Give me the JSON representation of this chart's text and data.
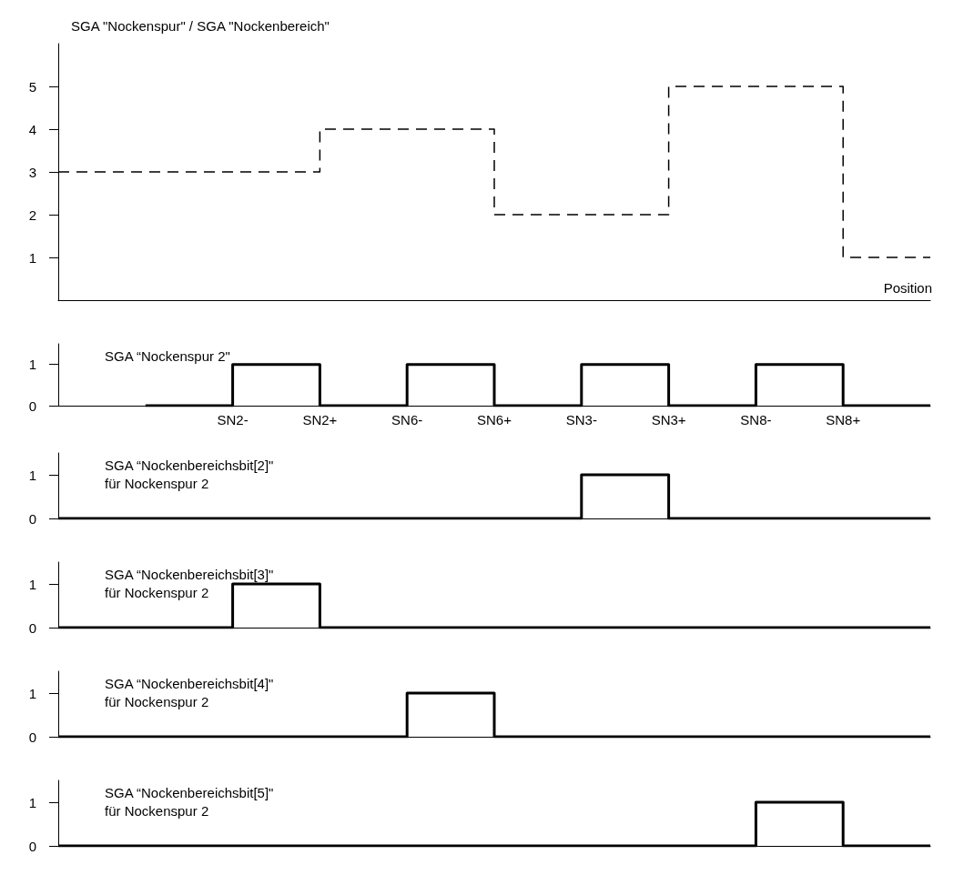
{
  "chart_data": [
    {
      "type": "step",
      "ylabel": "SGA \"Nockenspur\" / SGA \"Nockenbereich\"",
      "xlabel": "Position",
      "categories": [
        null,
        null,
        null,
        null,
        null,
        null,
        null,
        null,
        null,
        null,
        null
      ],
      "values": [
        3,
        3,
        3,
        4,
        4,
        2,
        2,
        5,
        5,
        1,
        1
      ],
      "color": "#000000",
      "ylim": [
        0,
        6
      ],
      "yticks": [
        1,
        2,
        3,
        4,
        5
      ],
      "tick_labels": "y",
      "grid": false,
      "marker": "none",
      "line_style": "dashed"
    },
    {
      "type": "step",
      "title": "SGA “Nockenspur 2\"",
      "categories": [
        null,
        null,
        "SN2-",
        "SN2+",
        "SN6-",
        "SN6+",
        "SN3-",
        "SN3+",
        "SN8-",
        "SN8+",
        null
      ],
      "values": [
        null,
        0,
        1,
        0,
        1,
        0,
        1,
        0,
        1,
        0,
        0
      ],
      "color": "#000000",
      "ylim": [
        0,
        1.5
      ],
      "yticks": [
        0,
        1
      ],
      "grid": false,
      "marker": "none",
      "line_style": "solid"
    },
    {
      "type": "step",
      "title": "SGA “Nockenbereichsbit[2]\"\nfür Nockenspur 2",
      "categories": [
        null,
        null,
        null,
        null,
        null,
        null,
        null,
        null,
        null,
        null,
        null
      ],
      "values": [
        0,
        0,
        0,
        0,
        0,
        0,
        1,
        0,
        0,
        0,
        0
      ],
      "color": "#000000",
      "ylim": [
        0,
        1.5
      ],
      "yticks": [
        0,
        1
      ],
      "tick_labels": "y",
      "grid": false,
      "marker": "none",
      "line_style": "solid"
    },
    {
      "type": "step",
      "title": "SGA “Nockenbereichsbit[3]\"\nfür Nockenspur 2",
      "categories": [
        null,
        null,
        null,
        null,
        null,
        null,
        null,
        null,
        null,
        null,
        null
      ],
      "values": [
        0,
        0,
        1,
        0,
        0,
        0,
        0,
        0,
        0,
        0,
        0
      ],
      "color": "#000000",
      "ylim": [
        0,
        1.5
      ],
      "yticks": [
        0,
        1
      ],
      "tick_labels": "y",
      "grid": false,
      "marker": "none",
      "line_style": "solid"
    },
    {
      "type": "step",
      "title": "SGA “Nockenbereichsbit[4]\"\nfür Nockenspur 2",
      "categories": [
        null,
        null,
        null,
        null,
        null,
        null,
        null,
        null,
        null,
        null,
        null
      ],
      "values": [
        0,
        0,
        0,
        0,
        1,
        0,
        0,
        0,
        0,
        0,
        0
      ],
      "color": "#000000",
      "ylim": [
        0,
        1.5
      ],
      "yticks": [
        0,
        1
      ],
      "tick_labels": "y",
      "grid": false,
      "marker": "none",
      "line_style": "solid"
    },
    {
      "type": "step",
      "title": "SGA “Nockenbereichsbit[5]\"\nfür Nockenspur 2",
      "categories": [
        null,
        null,
        null,
        null,
        null,
        null,
        null,
        null,
        null,
        null,
        null
      ],
      "values": [
        0,
        0,
        0,
        0,
        0,
        0,
        0,
        0,
        1,
        0,
        0
      ],
      "color": "#000000",
      "ylim": [
        0,
        1.5
      ],
      "yticks": [
        0,
        1
      ],
      "tick_labels": "y",
      "grid": false,
      "marker": "none",
      "line_style": "solid"
    }
  ]
}
